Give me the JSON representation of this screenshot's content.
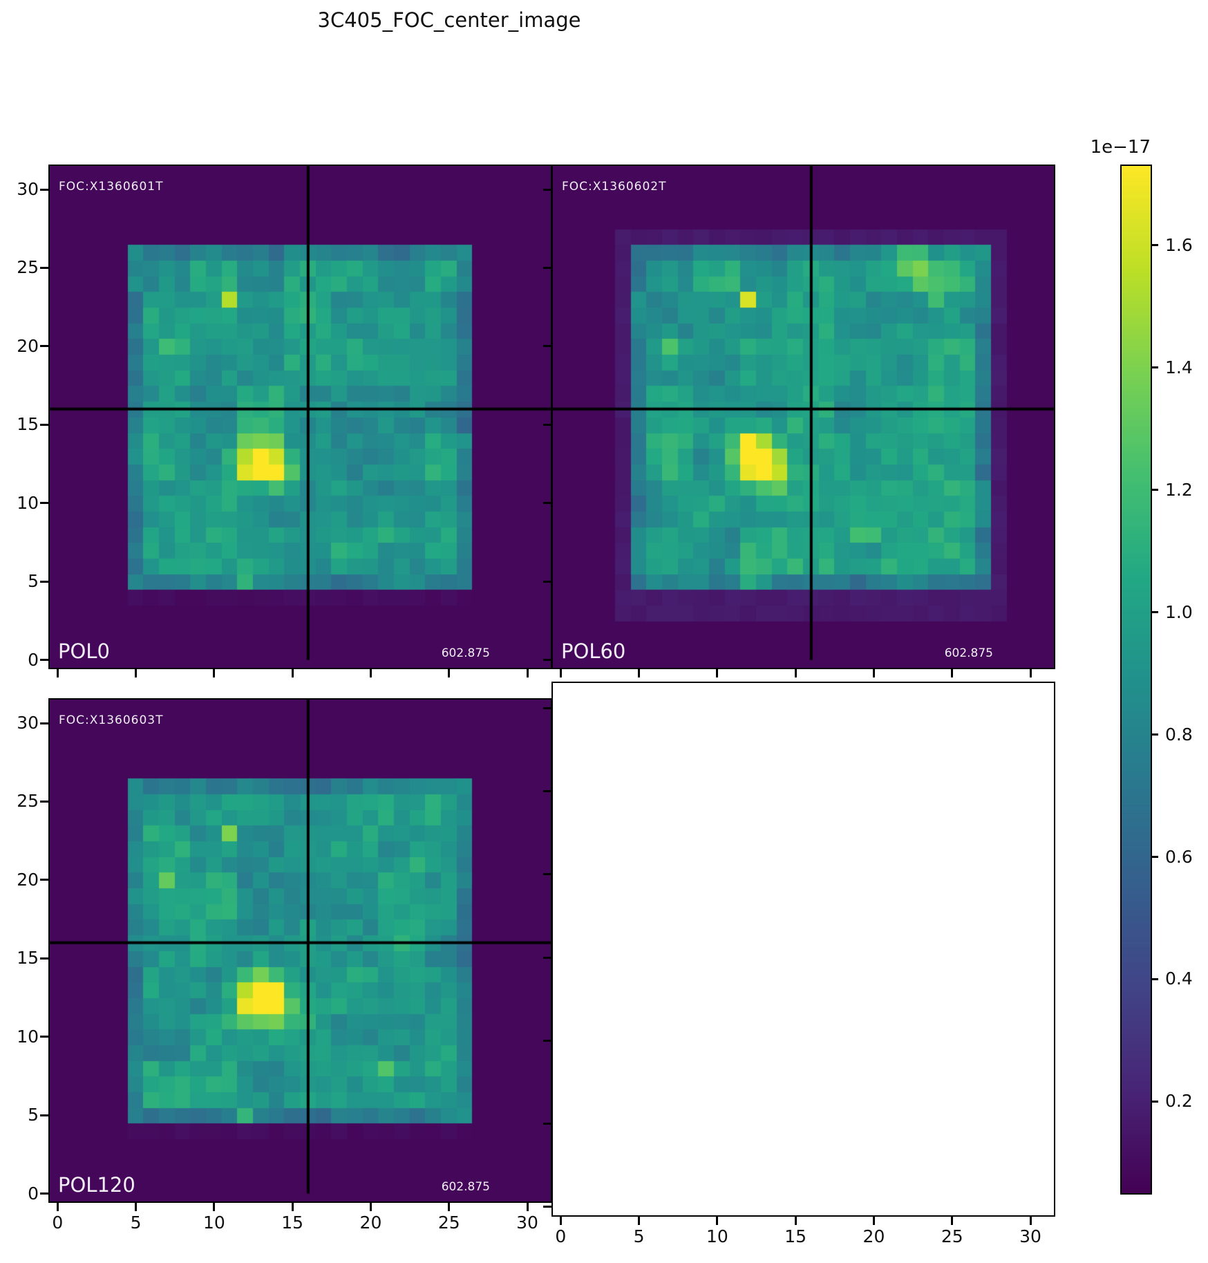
{
  "title": "3C405_FOC_center_image",
  "colors": {
    "figure_bg": "#ffffff",
    "crosshair": "#000000",
    "panel_text": "#f2eef6",
    "tick_text": "#111111",
    "background_low": "#440154",
    "peak_high": "#fde725"
  },
  "chart_data": {
    "type": "heatmap",
    "title": "3C405_FOC_center_image",
    "colormap": "viridis",
    "grid_size": [
      32,
      32
    ],
    "xlim": [
      -0.5,
      31.5
    ],
    "ylim": [
      -0.5,
      31.5
    ],
    "x_ticks": [
      0,
      5,
      10,
      15,
      20,
      25,
      30
    ],
    "y_ticks": [
      0,
      5,
      10,
      15,
      20,
      25,
      30
    ],
    "colorbar": {
      "scale_label": "1e−17",
      "ticks": [
        1.6,
        1.4,
        1.2,
        1.0,
        0.8,
        0.6,
        0.4,
        0.2
      ],
      "vmin": 0.05,
      "vmax": 1.73
    },
    "crosshair_xy": [
      16,
      16
    ],
    "panels": [
      {
        "name": "POL0",
        "foc_id": "FOC:X1360601T",
        "exposure": "602.875",
        "background_value": 0.08,
        "halo": {
          "x": [
            5,
            26
          ],
          "y": [
            4,
            26
          ],
          "value": 0.1
        },
        "data_region": {
          "x": [
            5,
            26
          ],
          "y": [
            5,
            26
          ],
          "mean": 0.95,
          "edge_value_factor": 0.8
        },
        "hotspots": [
          [
            13,
            13,
            1.52,
            1.5
          ],
          [
            14,
            12,
            1.62,
            1.0
          ],
          [
            12,
            12,
            1.35,
            1.2
          ],
          [
            11,
            23,
            1.5,
            0.6
          ],
          [
            7,
            20,
            1.18,
            0.6
          ],
          [
            12,
            5,
            1.35,
            0.6
          ],
          [
            21,
            8,
            1.18,
            0.9
          ],
          [
            22.5,
            8,
            1.15,
            0.8
          ]
        ],
        "noise_seed": 1
      },
      {
        "name": "POL60",
        "foc_id": "FOC:X1360602T",
        "exposure": "602.875",
        "background_value": 0.08,
        "halo": {
          "x": [
            4,
            28
          ],
          "y": [
            3,
            27
          ],
          "value": 0.17
        },
        "data_region": {
          "x": [
            5,
            27
          ],
          "y": [
            5,
            26
          ],
          "mean": 0.97,
          "edge_value_factor": 0.8
        },
        "hotspots": [
          [
            12,
            13,
            1.72,
            1.1
          ],
          [
            13.5,
            12,
            1.68,
            1.2
          ],
          [
            12.5,
            13.5,
            1.5,
            1.5
          ],
          [
            12,
            23,
            1.58,
            0.6
          ],
          [
            7,
            20,
            1.22,
            0.6
          ],
          [
            12.5,
            5,
            1.42,
            0.6
          ],
          [
            19.5,
            8,
            1.38,
            0.6
          ],
          [
            22.5,
            25.5,
            1.42,
            1.1
          ],
          [
            24,
            23.5,
            1.3,
            1.0
          ],
          [
            21.5,
            21,
            1.22,
            0.8
          ],
          [
            25,
            25,
            1.25,
            1.5
          ]
        ],
        "noise_seed": 2
      },
      {
        "name": "POL120",
        "foc_id": "FOC:X1360603T",
        "exposure": "602.875",
        "background_value": 0.08,
        "halo": {
          "x": [
            5,
            26
          ],
          "y": [
            4,
            26
          ],
          "value": 0.1
        },
        "data_region": {
          "x": [
            5,
            26
          ],
          "y": [
            5,
            26
          ],
          "mean": 0.95,
          "edge_value_factor": 0.8
        },
        "hotspots": [
          [
            13,
            13,
            1.62,
            1.4
          ],
          [
            14,
            12,
            1.66,
            1.1
          ],
          [
            12.5,
            12,
            1.45,
            1.3
          ],
          [
            11,
            23,
            1.48,
            0.6
          ],
          [
            7,
            20,
            1.25,
            0.6
          ],
          [
            12,
            5,
            1.32,
            0.6
          ],
          [
            21,
            8,
            1.22,
            0.7
          ],
          [
            22.5,
            21,
            1.18,
            0.8
          ]
        ],
        "noise_seed": 3
      }
    ],
    "empty_panel": {
      "has_data": false
    }
  }
}
